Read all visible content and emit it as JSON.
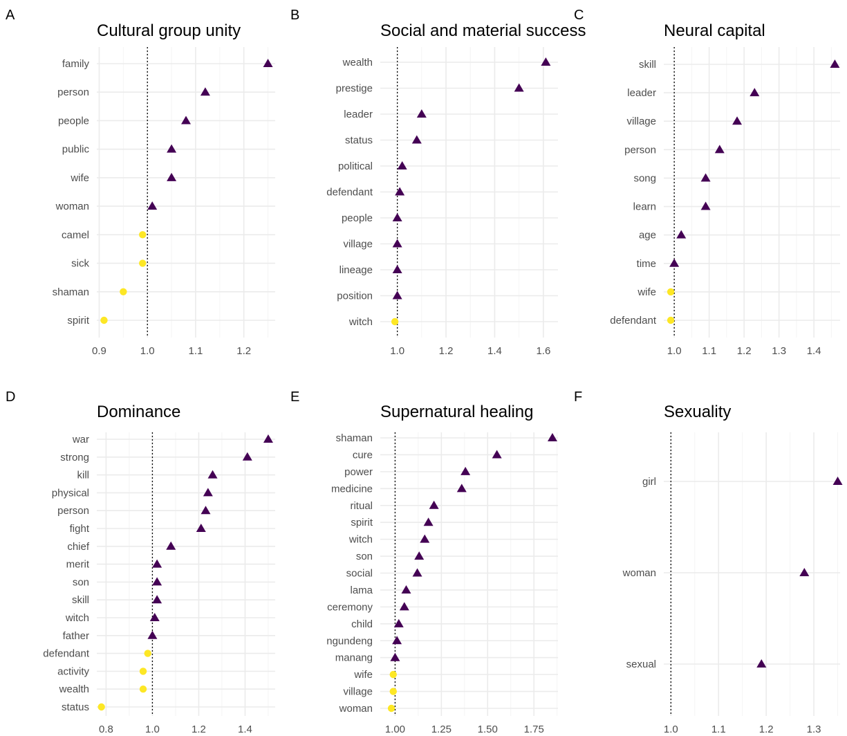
{
  "colors": {
    "above_one": "#440154",
    "below_one": "#FDE725"
  },
  "chart_data": [
    {
      "type": "scatter",
      "panel_label": "A",
      "title": "Cultural group unity",
      "xlabel": "",
      "ylabel": "",
      "xlim": [
        0.895,
        1.265
      ],
      "x_ticks": [
        0.9,
        1.0,
        1.1,
        1.2
      ],
      "x_tick_labels": [
        "0.9",
        "1.0",
        "1.1",
        "1.2"
      ],
      "reference_line": 1.0,
      "categories": [
        "family",
        "person",
        "people",
        "public",
        "wife",
        "woman",
        "camel",
        "sick",
        "shaman",
        "spirit"
      ],
      "values": [
        1.25,
        1.12,
        1.08,
        1.05,
        1.05,
        1.01,
        0.99,
        0.99,
        0.95,
        0.91
      ],
      "grid": true
    },
    {
      "type": "scatter",
      "panel_label": "B",
      "title": "Social and material success",
      "xlabel": "",
      "ylabel": "",
      "xlim": [
        0.93,
        1.66
      ],
      "x_ticks": [
        1.0,
        1.2,
        1.4,
        1.6
      ],
      "x_tick_labels": [
        "1.0",
        "1.2",
        "1.4",
        "1.6"
      ],
      "reference_line": 1.0,
      "categories": [
        "wealth",
        "prestige",
        "leader",
        "status",
        "political",
        "defendant",
        "people",
        "village",
        "lineage",
        "position",
        "witch"
      ],
      "values": [
        1.61,
        1.5,
        1.1,
        1.08,
        1.02,
        1.01,
        1.0,
        1.0,
        1.0,
        1.0,
        0.99
      ],
      "grid": true
    },
    {
      "type": "scatter",
      "panel_label": "C",
      "title": "Neural capital",
      "xlabel": "",
      "ylabel": "",
      "xlim": [
        0.97,
        1.475
      ],
      "x_ticks": [
        1.0,
        1.1,
        1.2,
        1.3,
        1.4
      ],
      "x_tick_labels": [
        "1.0",
        "1.1",
        "1.2",
        "1.3",
        "1.4"
      ],
      "reference_line": 1.0,
      "categories": [
        "skill",
        "leader",
        "village",
        "person",
        "song",
        "learn",
        "age",
        "time",
        "wife",
        "defendant"
      ],
      "values": [
        1.46,
        1.23,
        1.18,
        1.13,
        1.09,
        1.09,
        1.02,
        1.0,
        0.99,
        0.99
      ],
      "grid": true
    },
    {
      "type": "scatter",
      "panel_label": "D",
      "title": "Dominance",
      "xlabel": "",
      "ylabel": "",
      "xlim": [
        0.76,
        1.53
      ],
      "x_ticks": [
        0.8,
        1.0,
        1.2,
        1.4
      ],
      "x_tick_labels": [
        "0.8",
        "1.0",
        "1.2",
        "1.4"
      ],
      "reference_line": 1.0,
      "categories": [
        "war",
        "strong",
        "kill",
        "physical",
        "person",
        "fight",
        "chief",
        "merit",
        "son",
        "skill",
        "witch",
        "father",
        "defendant",
        "activity",
        "wealth",
        "status"
      ],
      "values": [
        1.5,
        1.41,
        1.26,
        1.24,
        1.23,
        1.21,
        1.08,
        1.02,
        1.02,
        1.02,
        1.01,
        1.0,
        0.98,
        0.96,
        0.96,
        0.78
      ],
      "grid": true
    },
    {
      "type": "scatter",
      "panel_label": "E",
      "title": "Supernatural healing",
      "xlabel": "",
      "ylabel": "",
      "xlim": [
        0.92,
        1.88
      ],
      "x_ticks": [
        1.0,
        1.25,
        1.5,
        1.75
      ],
      "x_tick_labels": [
        "1.00",
        "1.25",
        "1.50",
        "1.75"
      ],
      "reference_line": 1.0,
      "categories": [
        "shaman",
        "cure",
        "power",
        "medicine",
        "ritual",
        "spirit",
        "witch",
        "son",
        "social",
        "lama",
        "ceremony",
        "child",
        "ngundeng",
        "manang",
        "wife",
        "village",
        "woman"
      ],
      "values": [
        1.85,
        1.55,
        1.38,
        1.36,
        1.21,
        1.18,
        1.16,
        1.13,
        1.12,
        1.06,
        1.05,
        1.02,
        1.01,
        1.0,
        0.99,
        0.99,
        0.98
      ],
      "grid": true
    },
    {
      "type": "scatter",
      "panel_label": "F",
      "title": "Sexuality",
      "xlabel": "",
      "ylabel": "",
      "xlim": [
        0.985,
        1.355
      ],
      "x_ticks": [
        1.0,
        1.1,
        1.2,
        1.3
      ],
      "x_tick_labels": [
        "1.0",
        "1.1",
        "1.2",
        "1.3"
      ],
      "reference_line": 1.0,
      "categories": [
        "girl",
        "woman",
        "sexual"
      ],
      "values": [
        1.35,
        1.28,
        1.19
      ],
      "grid": true
    }
  ]
}
